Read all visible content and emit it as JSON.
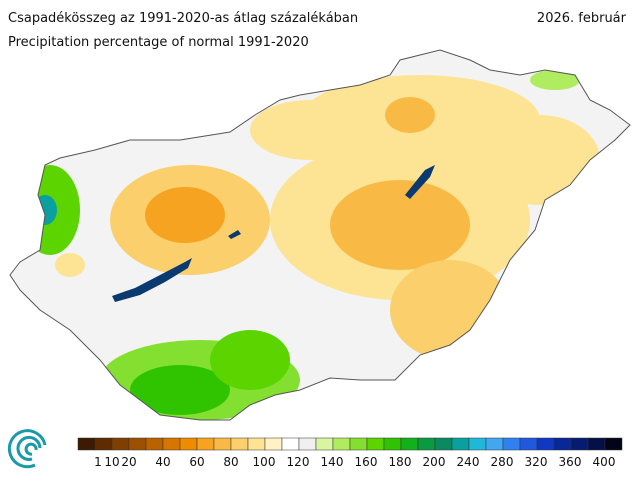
{
  "header": {
    "title": "Csapadékösszeg az 1991-2020-as átlag százalékában",
    "subtitle": "Precipitation percentage of normal 1991-2020",
    "date": "2026. február"
  },
  "legend": {
    "labels": [
      "1",
      "10",
      "20",
      "40",
      "60",
      "80",
      "100",
      "120",
      "140",
      "160",
      "180",
      "200",
      "240",
      "280",
      "320",
      "360",
      "400"
    ],
    "colors": [
      "#3d1a00",
      "#5e2c00",
      "#7f3f00",
      "#9c5100",
      "#b96300",
      "#d67600",
      "#ee8c00",
      "#f6a321",
      "#f9ba45",
      "#fbcf6b",
      "#fde394",
      "#fff2c4",
      "#ffffff",
      "#f0f0f0",
      "#d8f5a0",
      "#b0ec60",
      "#84e030",
      "#5cd400",
      "#30c400",
      "#12b01a",
      "#0c9a40",
      "#0a8a60",
      "#0aa0a0",
      "#20b8d8",
      "#40a8f0",
      "#3080f0",
      "#2058e0",
      "#1038c0",
      "#082898",
      "#061c70",
      "#041048",
      "#020418"
    ]
  }
}
